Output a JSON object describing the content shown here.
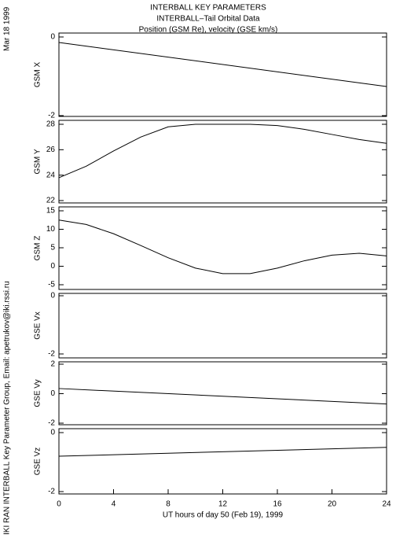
{
  "header": {
    "title_lines": [
      "INTERBALL KEY PARAMETERS",
      "INTERBALL–Tail Orbital Data",
      "Position (GSM Re), velocity (GSE km/s)"
    ],
    "date": "Mar 18 1999",
    "credit": "IKI RAN INTERBALL Key Parameter Group, Email: apetrukov@iki.rssi.ru"
  },
  "chart_data": [
    {
      "type": "line",
      "y_label": "GSM X",
      "ylim": [
        -2,
        0
      ],
      "yticks": [
        -2,
        0
      ],
      "xlim": [
        0,
        24
      ],
      "x": [
        0,
        24
      ],
      "series": [
        {
          "name": "GSM X",
          "color": "#000000",
          "values": [
            -0.14,
            -1.26
          ]
        }
      ]
    },
    {
      "type": "line",
      "y_label": "GSM Y",
      "ylim": [
        22,
        28
      ],
      "yticks": [
        22,
        24,
        26,
        28
      ],
      "xlim": [
        0,
        24
      ],
      "x": [
        0,
        2,
        4,
        6,
        8,
        10,
        12,
        14,
        16,
        18,
        20,
        22,
        24
      ],
      "series": [
        {
          "name": "GSM Y",
          "color": "#000000",
          "values": [
            23.8,
            24.7,
            25.9,
            27.0,
            27.8,
            28.0,
            28.0,
            28.0,
            27.9,
            27.6,
            27.2,
            26.8,
            26.5
          ]
        }
      ]
    },
    {
      "type": "line",
      "y_label": "GSM Z",
      "ylim": [
        -5,
        15
      ],
      "yticks": [
        -5,
        0,
        5,
        10,
        15
      ],
      "xlim": [
        0,
        24
      ],
      "x": [
        0,
        2,
        4,
        6,
        8,
        10,
        12,
        14,
        16,
        18,
        20,
        22,
        24
      ],
      "series": [
        {
          "name": "GSM Z",
          "color": "#000000",
          "values": [
            12.5,
            11.3,
            8.8,
            5.6,
            2.3,
            -0.5,
            -2.0,
            -2.0,
            -0.5,
            1.5,
            3.0,
            3.5,
            2.8
          ]
        }
      ]
    },
    {
      "type": "line",
      "y_label": "GSE Vx",
      "ylim": [
        -2,
        0
      ],
      "yticks": [
        -2,
        0
      ],
      "xlim": [
        0,
        24
      ]
    },
    {
      "type": "line",
      "y_label": "GSE Vy",
      "ylim": [
        -2,
        2
      ],
      "yticks": [
        -2,
        0,
        2
      ],
      "xlim": [
        0,
        24
      ],
      "x": [
        0,
        24
      ],
      "series": [
        {
          "name": "GSE Vy",
          "color": "#000000",
          "values": [
            0.35,
            -0.7
          ]
        }
      ]
    },
    {
      "type": "line",
      "y_label": "GSE Vz",
      "ylim": [
        -2,
        0
      ],
      "yticks": [
        -2,
        0
      ],
      "xlim": [
        0,
        24
      ],
      "x": [
        0,
        24
      ],
      "series": [
        {
          "name": "GSE Vz",
          "color": "#000000",
          "values": [
            -0.8,
            -0.5
          ]
        }
      ],
      "xticks": [
        0,
        4,
        8,
        12,
        16,
        20,
        24
      ],
      "x_label": "UT hours of day  50 (Feb 19), 1999"
    }
  ]
}
